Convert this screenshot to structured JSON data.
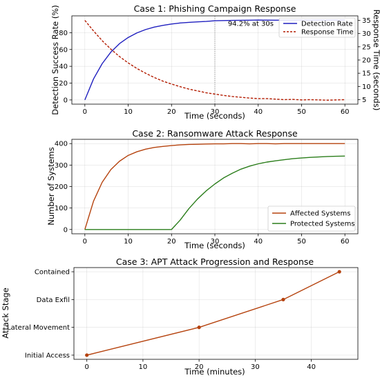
{
  "chart_data": [
    {
      "type": "line",
      "title": "Case 1: Phishing Campaign Response",
      "xlabel": "Time (seconds)",
      "ylabel": "Detection Success Rate (%)",
      "ylabel_right": "Response Time (seconds)",
      "xlim": [
        -3,
        63
      ],
      "ylim": [
        -5,
        100
      ],
      "ylim_right": [
        3.3,
        36.7
      ],
      "xticks": [
        0,
        10,
        20,
        30,
        40,
        50,
        60
      ],
      "yticks": [
        0,
        20,
        40,
        60,
        80
      ],
      "yticks_right": [
        5,
        10,
        15,
        20,
        25,
        30,
        35
      ],
      "grid": true,
      "legend_position": "top-right",
      "colors": {
        "left_axis": "#0000cc",
        "right_axis": "#b31b00"
      },
      "series": [
        {
          "name": "Detection Rate",
          "color": "#1f1fbf",
          "axis": "left",
          "x": [
            0,
            2,
            4,
            6,
            8,
            10,
            12,
            14,
            16,
            18,
            20,
            22,
            24,
            26,
            28,
            30,
            32,
            34,
            36,
            38,
            40,
            42,
            44,
            46,
            48,
            50,
            52,
            54,
            56,
            58,
            60
          ],
          "y": [
            0,
            25.0,
            43.2,
            56.9,
            67.0,
            74.3,
            79.7,
            83.7,
            86.6,
            88.7,
            90.3,
            91.5,
            92.3,
            92.9,
            93.4,
            94.2,
            94.4,
            94.6,
            94.7,
            94.8,
            95.0,
            94.9,
            94.8,
            94.9,
            94.9,
            95.0,
            94.9,
            95.0,
            95.0,
            95.0,
            95.0
          ]
        },
        {
          "name": "Response Time",
          "color": "#b31b00",
          "axis": "right",
          "style": "dashed",
          "x": [
            0,
            2,
            4,
            6,
            8,
            10,
            12,
            14,
            16,
            18,
            20,
            22,
            24,
            26,
            28,
            30,
            32,
            34,
            36,
            38,
            40,
            42,
            44,
            46,
            48,
            50,
            52,
            54,
            56,
            58,
            60
          ],
          "y": [
            35,
            31.0,
            27.3,
            24.1,
            21.3,
            18.9,
            16.8,
            15.0,
            13.4,
            12.0,
            10.9,
            9.9,
            9.0,
            8.3,
            7.6,
            7.1,
            6.6,
            6.2,
            5.9,
            5.6,
            5.4,
            5.4,
            5.2,
            5.0,
            5.1,
            4.9,
            5.0,
            4.9,
            4.8,
            4.9,
            5.0
          ]
        }
      ],
      "vline": {
        "x": 30
      },
      "annotation": {
        "text": "94.2% at 30s",
        "x": 33,
        "y": 88
      }
    },
    {
      "type": "line",
      "title": "Case 2: Ransomware Attack Response",
      "xlabel": "Time (seconds)",
      "ylabel": "Number of Systems",
      "xlim": [
        -3,
        63
      ],
      "ylim": [
        -20,
        420
      ],
      "xticks": [
        0,
        10,
        20,
        30,
        40,
        50,
        60
      ],
      "yticks": [
        0,
        100,
        200,
        300,
        400
      ],
      "grid": true,
      "legend_position": "bottom-right",
      "series": [
        {
          "name": "Affected Systems",
          "color": "#b5420d",
          "x": [
            0,
            2,
            4,
            6,
            8,
            10,
            12,
            14,
            16,
            18,
            20,
            22,
            24,
            26,
            28,
            30,
            32,
            34,
            36,
            38,
            40,
            42,
            44,
            46,
            48,
            50,
            52,
            54,
            56,
            58,
            60
          ],
          "y": [
            0,
            132,
            220,
            279,
            318,
            345,
            362,
            374,
            382,
            387,
            391,
            394,
            396,
            397,
            398,
            399,
            399,
            400,
            400,
            399,
            400,
            400,
            399,
            400,
            400,
            400,
            400,
            400,
            400,
            400,
            400
          ]
        },
        {
          "name": "Protected Systems",
          "color": "#2a7d1a",
          "x": [
            0,
            20,
            22,
            24,
            26,
            28,
            30,
            32,
            34,
            36,
            38,
            40,
            42,
            44,
            46,
            48,
            50,
            52,
            54,
            56,
            58,
            60
          ],
          "y": [
            0,
            0,
            44,
            97,
            142,
            180,
            212,
            240,
            262,
            281,
            295,
            306,
            314,
            320,
            325,
            330,
            333,
            336,
            338,
            340,
            341,
            342
          ]
        }
      ]
    },
    {
      "type": "line",
      "title": "Case 3: APT Attack Progression and Response",
      "xlabel": "Time (minutes)",
      "ylabel": "Attack Stage",
      "xlim": [
        -2.3,
        48.3
      ],
      "ylim": [
        -0.15,
        3.15
      ],
      "xticks": [
        0,
        10,
        20,
        30,
        40
      ],
      "yticks": [
        0,
        1,
        2,
        3
      ],
      "ytick_labels": [
        "Initial Access",
        "Lateral Movement",
        "Data Exfil",
        "Contained"
      ],
      "grid": true,
      "series": [
        {
          "color": "#b5420d",
          "marker": "circle",
          "x": [
            0,
            20,
            35,
            45
          ],
          "y": [
            0,
            1,
            2,
            3
          ]
        }
      ]
    }
  ]
}
